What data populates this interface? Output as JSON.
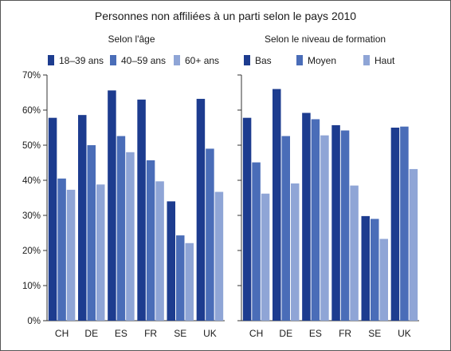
{
  "title": "Personnes non affiliées à un parti selon le pays 2010",
  "colors": [
    "#1d3c8f",
    "#4a6db8",
    "#8fa5d6"
  ],
  "chart_data": [
    {
      "type": "bar",
      "title": "Selon l'âge",
      "categories": [
        "CH",
        "DE",
        "ES",
        "FR",
        "SE",
        "UK"
      ],
      "series": [
        {
          "name": "18–39 ans",
          "values": [
            57.8,
            58.6,
            65.6,
            63.0,
            34.0,
            63.2
          ]
        },
        {
          "name": "40–59 ans",
          "values": [
            40.5,
            50.0,
            52.6,
            45.7,
            24.3,
            49.0
          ]
        },
        {
          "name": "60+ ans",
          "values": [
            37.3,
            38.8,
            48.0,
            39.7,
            22.1,
            36.7
          ]
        }
      ],
      "ylim": [
        0,
        70
      ],
      "yticks": [
        "0%",
        "10%",
        "20%",
        "30%",
        "40%",
        "50%",
        "60%",
        "70%"
      ],
      "legend": "top",
      "grid": false
    },
    {
      "type": "bar",
      "title": "Selon le niveau de formation",
      "categories": [
        "CH",
        "DE",
        "ES",
        "FR",
        "SE",
        "UK"
      ],
      "series": [
        {
          "name": "Bas",
          "values": [
            57.8,
            66.0,
            59.2,
            55.7,
            29.8,
            55.0
          ]
        },
        {
          "name": "Moyen",
          "values": [
            45.1,
            52.6,
            57.4,
            54.2,
            29.0,
            55.3
          ]
        },
        {
          "name": "Haut",
          "values": [
            36.2,
            39.1,
            52.8,
            38.5,
            23.3,
            43.2
          ]
        }
      ],
      "ylim": [
        0,
        70
      ],
      "legend": "top",
      "grid": false
    }
  ]
}
